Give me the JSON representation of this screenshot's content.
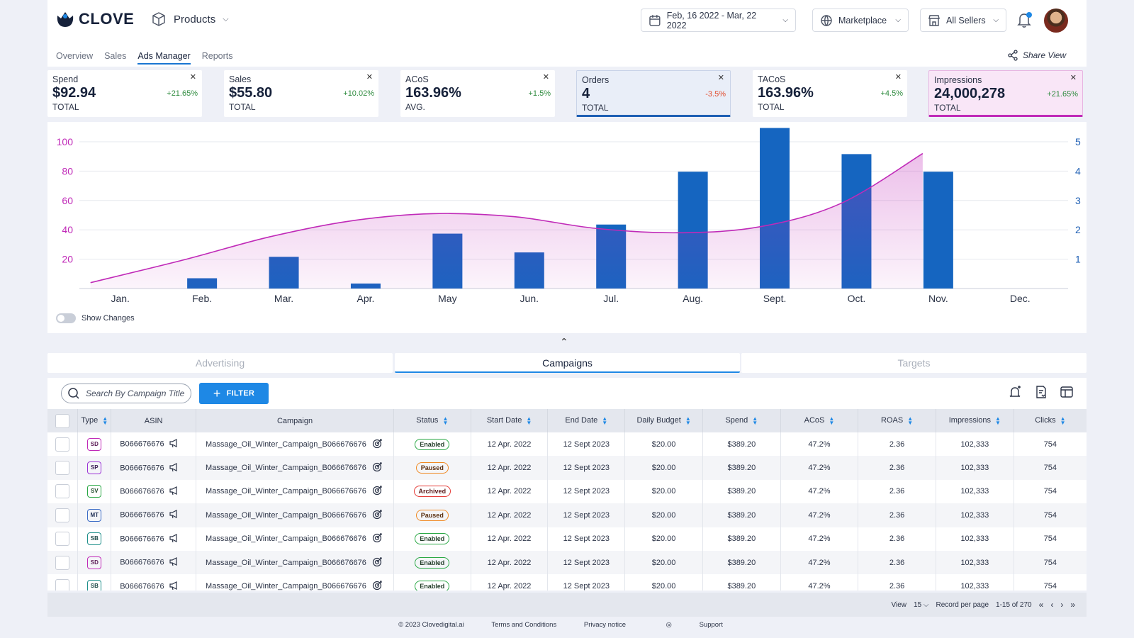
{
  "brand": {
    "name": "CLOVE"
  },
  "header": {
    "products_label": "Products",
    "date_range": "Feb, 16 2022 - Mar, 22 2022",
    "marketplace": "Marketplace",
    "sellers": "All Sellers",
    "share_label": "Share View"
  },
  "tabs": [
    "Overview",
    "Sales",
    "Ads Manager",
    "Reports"
  ],
  "active_tab": "Ads Manager",
  "metrics": [
    {
      "label": "Spend",
      "value": "$92.94",
      "sub": "TOTAL",
      "change": "+21.65%"
    },
    {
      "label": "Sales",
      "value": "$55.80",
      "sub": "TOTAL",
      "change": "+10.02%"
    },
    {
      "label": "ACoS",
      "value": "163.96%",
      "sub": "AVG.",
      "change": "+1.5%"
    },
    {
      "label": "Orders",
      "value": "4",
      "sub": "TOTAL",
      "change": "-3.5%"
    },
    {
      "label": "TACoS",
      "value": "163.96%",
      "sub": "TOTAL",
      "change": "+4.5%"
    },
    {
      "label": "Impressions",
      "value": "24,000,278",
      "sub": "TOTAL",
      "change": "+21.65%"
    }
  ],
  "chart_data": {
    "type": "bar",
    "categories": [
      "Jan.",
      "Feb.",
      "Mar.",
      "Apr.",
      "May",
      "Jun.",
      "Jul.",
      "Aug.",
      "Sept.",
      "Oct.",
      "Nov.",
      "Dec."
    ],
    "series": [
      {
        "type": "bar",
        "axis": "right",
        "color": "#1565c0",
        "values": [
          0,
          0.35,
          1.08,
          0.17,
          1.87,
          1.23,
          2.18,
          3.98,
          5.47,
          4.58,
          3.98,
          null
        ]
      },
      {
        "type": "area",
        "axis": "left",
        "color": "#c02ab8",
        "values": [
          4,
          20,
          35,
          46,
          51,
          49,
          41,
          38,
          42,
          58,
          92,
          null
        ]
      }
    ],
    "y_left": {
      "ticks": [
        20,
        40,
        60,
        80,
        100
      ],
      "range": [
        0,
        100
      ]
    },
    "y_right": {
      "ticks": [
        1,
        2,
        3,
        4,
        5
      ],
      "range": [
        0,
        5
      ]
    },
    "grid": true
  },
  "show_changes_label": "Show Changes",
  "subtabs": [
    "Advertising",
    "Campaigns",
    "Targets"
  ],
  "active_subtab": "Campaigns",
  "search": {
    "placeholder": "Search By Campaign Title"
  },
  "filter_label": "FILTER",
  "table": {
    "columns": [
      "Type",
      "ASIN",
      "Campaign",
      "Status",
      "Start Date",
      "End Date",
      "Daily Budget",
      "Spend",
      "ACoS",
      "ROAS",
      "Impressions",
      "Clicks"
    ],
    "rows": [
      {
        "type": "SD",
        "asin": "B066676676",
        "campaign": "Massage_Oil_Winter_Campaign_B066676676",
        "status": "Enabled",
        "start": "12 Apr. 2022",
        "end": "12 Sept 2023",
        "budget": "$20.00",
        "spend": "$389.20",
        "acos": "47.2%",
        "roas": "2.36",
        "impressions": "102,333",
        "clicks": "754"
      },
      {
        "type": "SP",
        "asin": "B066676676",
        "campaign": "Massage_Oil_Winter_Campaign_B066676676",
        "status": "Paused",
        "start": "12 Apr. 2022",
        "end": "12 Sept 2023",
        "budget": "$20.00",
        "spend": "$389.20",
        "acos": "47.2%",
        "roas": "2.36",
        "impressions": "102,333",
        "clicks": "754"
      },
      {
        "type": "SV",
        "asin": "B066676676",
        "campaign": "Massage_Oil_Winter_Campaign_B066676676",
        "status": "Archived",
        "start": "12 Apr. 2022",
        "end": "12 Sept 2023",
        "budget": "$20.00",
        "spend": "$389.20",
        "acos": "47.2%",
        "roas": "2.36",
        "impressions": "102,333",
        "clicks": "754"
      },
      {
        "type": "MT",
        "asin": "B066676676",
        "campaign": "Massage_Oil_Winter_Campaign_B066676676",
        "status": "Paused",
        "start": "12 Apr. 2022",
        "end": "12 Sept 2023",
        "budget": "$20.00",
        "spend": "$389.20",
        "acos": "47.2%",
        "roas": "2.36",
        "impressions": "102,333",
        "clicks": "754"
      },
      {
        "type": "SB",
        "asin": "B066676676",
        "campaign": "Massage_Oil_Winter_Campaign_B066676676",
        "status": "Enabled",
        "start": "12 Apr. 2022",
        "end": "12 Sept 2023",
        "budget": "$20.00",
        "spend": "$389.20",
        "acos": "47.2%",
        "roas": "2.36",
        "impressions": "102,333",
        "clicks": "754"
      },
      {
        "type": "SD",
        "asin": "B066676676",
        "campaign": "Massage_Oil_Winter_Campaign_B066676676",
        "status": "Enabled",
        "start": "12 Apr. 2022",
        "end": "12 Sept 2023",
        "budget": "$20.00",
        "spend": "$389.20",
        "acos": "47.2%",
        "roas": "2.36",
        "impressions": "102,333",
        "clicks": "754"
      },
      {
        "type": "SB",
        "asin": "B066676676",
        "campaign": "Massage_Oil_Winter_Campaign_B066676676",
        "status": "Enabled",
        "start": "12 Apr. 2022",
        "end": "12 Sept 2023",
        "budget": "$20.00",
        "spend": "$389.20",
        "acos": "47.2%",
        "roas": "2.36",
        "impressions": "102,333",
        "clicks": "754"
      }
    ]
  },
  "pagination": {
    "view_label": "View",
    "per_page": "15",
    "record_label": "Record per page",
    "range": "1-15 of 270"
  },
  "footer": {
    "copyright": "© 2023 Clovedigital.ai",
    "terms": "Terms and Conditions",
    "privacy": "Privacy notice",
    "support": "Support"
  }
}
